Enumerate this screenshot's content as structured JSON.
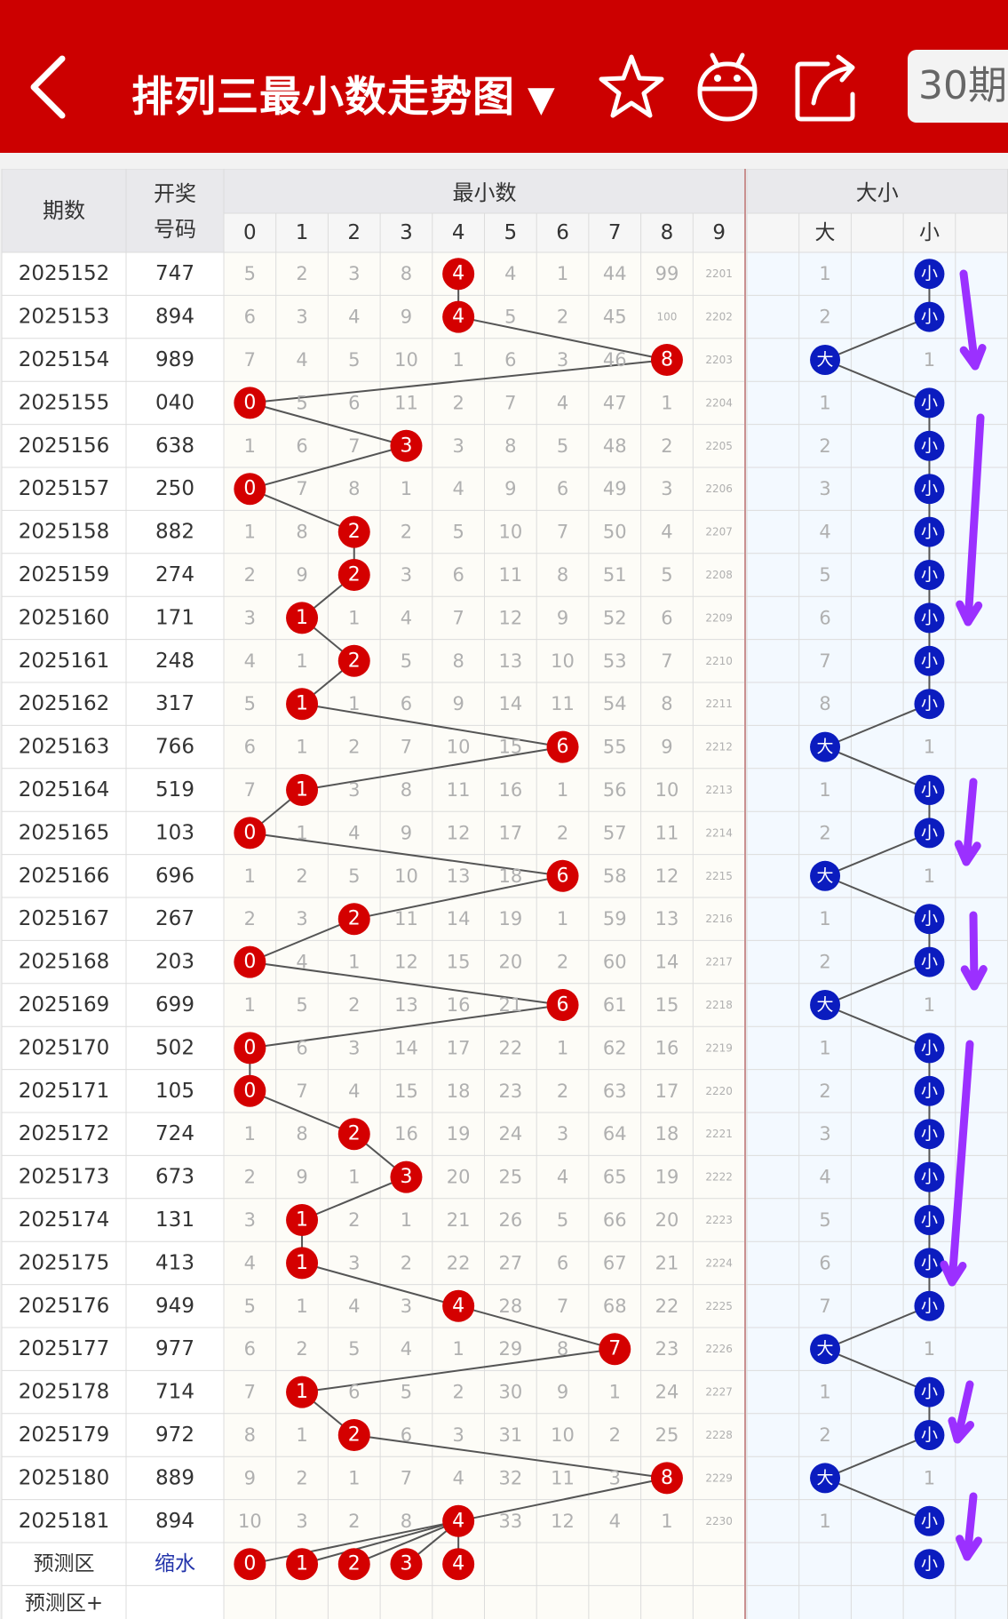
{
  "header": {
    "title": "排列三最小数走势图",
    "dropdown_symbol": "▼",
    "period_button": "30期",
    "icons": [
      "back-icon",
      "star-icon",
      "robot-icon",
      "share-icon"
    ]
  },
  "table": {
    "col_period": "期数",
    "col_draw": [
      "开奖",
      "号码"
    ],
    "group_min": "最小数",
    "group_bigsmall": "大小",
    "digits": [
      "0",
      "1",
      "2",
      "3",
      "4",
      "5",
      "6",
      "7",
      "8",
      "9"
    ],
    "big_label": "大",
    "small_label": "小",
    "rows": [
      {
        "period": "2025152",
        "draw": "747",
        "min": 4,
        "miss": [
          5,
          2,
          3,
          8,
          0,
          4,
          1,
          44,
          99,
          2201
        ],
        "bs": "小",
        "bsmiss": 1
      },
      {
        "period": "2025153",
        "draw": "894",
        "min": 4,
        "miss": [
          6,
          3,
          4,
          9,
          0,
          5,
          2,
          45,
          100,
          2202
        ],
        "bs": "小",
        "bsmiss": 2
      },
      {
        "period": "2025154",
        "draw": "989",
        "min": 8,
        "miss": [
          7,
          4,
          5,
          10,
          1,
          6,
          3,
          46,
          0,
          2203
        ],
        "bs": "大",
        "bsmiss": 1
      },
      {
        "period": "2025155",
        "draw": "040",
        "min": 0,
        "miss": [
          0,
          5,
          6,
          11,
          2,
          7,
          4,
          47,
          1,
          2204
        ],
        "bs": "小",
        "bsmiss": 1
      },
      {
        "period": "2025156",
        "draw": "638",
        "min": 3,
        "miss": [
          1,
          6,
          7,
          0,
          3,
          8,
          5,
          48,
          2,
          2205
        ],
        "bs": "小",
        "bsmiss": 2
      },
      {
        "period": "2025157",
        "draw": "250",
        "min": 0,
        "miss": [
          0,
          7,
          8,
          1,
          4,
          9,
          6,
          49,
          3,
          2206
        ],
        "bs": "小",
        "bsmiss": 3
      },
      {
        "period": "2025158",
        "draw": "882",
        "min": 2,
        "miss": [
          1,
          8,
          0,
          2,
          5,
          10,
          7,
          50,
          4,
          2207
        ],
        "bs": "小",
        "bsmiss": 4
      },
      {
        "period": "2025159",
        "draw": "274",
        "min": 2,
        "miss": [
          2,
          9,
          0,
          3,
          6,
          11,
          8,
          51,
          5,
          2208
        ],
        "bs": "小",
        "bsmiss": 5
      },
      {
        "period": "2025160",
        "draw": "171",
        "min": 1,
        "miss": [
          3,
          0,
          1,
          4,
          7,
          12,
          9,
          52,
          6,
          2209
        ],
        "bs": "小",
        "bsmiss": 6
      },
      {
        "period": "2025161",
        "draw": "248",
        "min": 2,
        "miss": [
          4,
          1,
          0,
          5,
          8,
          13,
          10,
          53,
          7,
          2210
        ],
        "bs": "小",
        "bsmiss": 7
      },
      {
        "period": "2025162",
        "draw": "317",
        "min": 1,
        "miss": [
          5,
          0,
          1,
          6,
          9,
          14,
          11,
          54,
          8,
          2211
        ],
        "bs": "小",
        "bsmiss": 8
      },
      {
        "period": "2025163",
        "draw": "766",
        "min": 6,
        "miss": [
          6,
          1,
          2,
          7,
          10,
          15,
          0,
          55,
          9,
          2212
        ],
        "bs": "大",
        "bsmiss": 1
      },
      {
        "period": "2025164",
        "draw": "519",
        "min": 1,
        "miss": [
          7,
          0,
          3,
          8,
          11,
          16,
          1,
          56,
          10,
          2213
        ],
        "bs": "小",
        "bsmiss": 1
      },
      {
        "period": "2025165",
        "draw": "103",
        "min": 0,
        "miss": [
          0,
          1,
          4,
          9,
          12,
          17,
          2,
          57,
          11,
          2214
        ],
        "bs": "小",
        "bsmiss": 2
      },
      {
        "period": "2025166",
        "draw": "696",
        "min": 6,
        "miss": [
          1,
          2,
          5,
          10,
          13,
          18,
          0,
          58,
          12,
          2215
        ],
        "bs": "大",
        "bsmiss": 1
      },
      {
        "period": "2025167",
        "draw": "267",
        "min": 2,
        "miss": [
          2,
          3,
          0,
          11,
          14,
          19,
          1,
          59,
          13,
          2216
        ],
        "bs": "小",
        "bsmiss": 1
      },
      {
        "period": "2025168",
        "draw": "203",
        "min": 0,
        "miss": [
          0,
          4,
          1,
          12,
          15,
          20,
          2,
          60,
          14,
          2217
        ],
        "bs": "小",
        "bsmiss": 2
      },
      {
        "period": "2025169",
        "draw": "699",
        "min": 6,
        "miss": [
          1,
          5,
          2,
          13,
          16,
          21,
          0,
          61,
          15,
          2218
        ],
        "bs": "大",
        "bsmiss": 1
      },
      {
        "period": "2025170",
        "draw": "502",
        "min": 0,
        "miss": [
          0,
          6,
          3,
          14,
          17,
          22,
          1,
          62,
          16,
          2219
        ],
        "bs": "小",
        "bsmiss": 1
      },
      {
        "period": "2025171",
        "draw": "105",
        "min": 0,
        "miss": [
          0,
          7,
          4,
          15,
          18,
          23,
          2,
          63,
          17,
          2220
        ],
        "bs": "小",
        "bsmiss": 2
      },
      {
        "period": "2025172",
        "draw": "724",
        "min": 2,
        "miss": [
          1,
          8,
          0,
          16,
          19,
          24,
          3,
          64,
          18,
          2221
        ],
        "bs": "小",
        "bsmiss": 3
      },
      {
        "period": "2025173",
        "draw": "673",
        "min": 3,
        "miss": [
          2,
          9,
          1,
          0,
          20,
          25,
          4,
          65,
          19,
          2222
        ],
        "bs": "小",
        "bsmiss": 4
      },
      {
        "period": "2025174",
        "draw": "131",
        "min": 1,
        "miss": [
          3,
          0,
          2,
          1,
          21,
          26,
          5,
          66,
          20,
          2223
        ],
        "bs": "小",
        "bsmiss": 5
      },
      {
        "period": "2025175",
        "draw": "413",
        "min": 1,
        "miss": [
          4,
          0,
          3,
          2,
          22,
          27,
          6,
          67,
          21,
          2224
        ],
        "bs": "小",
        "bsmiss": 6
      },
      {
        "period": "2025176",
        "draw": "949",
        "min": 4,
        "miss": [
          5,
          1,
          4,
          3,
          0,
          28,
          7,
          68,
          22,
          2225
        ],
        "bs": "小",
        "bsmiss": 7
      },
      {
        "period": "2025177",
        "draw": "977",
        "min": 7,
        "miss": [
          6,
          2,
          5,
          4,
          1,
          29,
          8,
          0,
          23,
          2226
        ],
        "bs": "大",
        "bsmiss": 1
      },
      {
        "period": "2025178",
        "draw": "714",
        "min": 1,
        "miss": [
          7,
          0,
          6,
          5,
          2,
          30,
          9,
          1,
          24,
          2227
        ],
        "bs": "小",
        "bsmiss": 1
      },
      {
        "period": "2025179",
        "draw": "972",
        "min": 2,
        "miss": [
          8,
          1,
          0,
          6,
          3,
          31,
          10,
          2,
          25,
          2228
        ],
        "bs": "小",
        "bsmiss": 2
      },
      {
        "period": "2025180",
        "draw": "889",
        "min": 8,
        "miss": [
          9,
          2,
          1,
          7,
          4,
          32,
          11,
          3,
          0,
          2229
        ],
        "bs": "大",
        "bsmiss": 1
      },
      {
        "period": "2025181",
        "draw": "894",
        "min": 4,
        "miss": [
          10,
          3,
          2,
          8,
          0,
          33,
          12,
          4,
          1,
          2230
        ],
        "bs": "小",
        "bsmiss": 1
      }
    ],
    "predict_label": "预测区",
    "predict_link": "缩水",
    "predict_balls": [
      0,
      1,
      2,
      3,
      4
    ],
    "predict_bs": "小",
    "predict_plus_label": "预测区+"
  }
}
